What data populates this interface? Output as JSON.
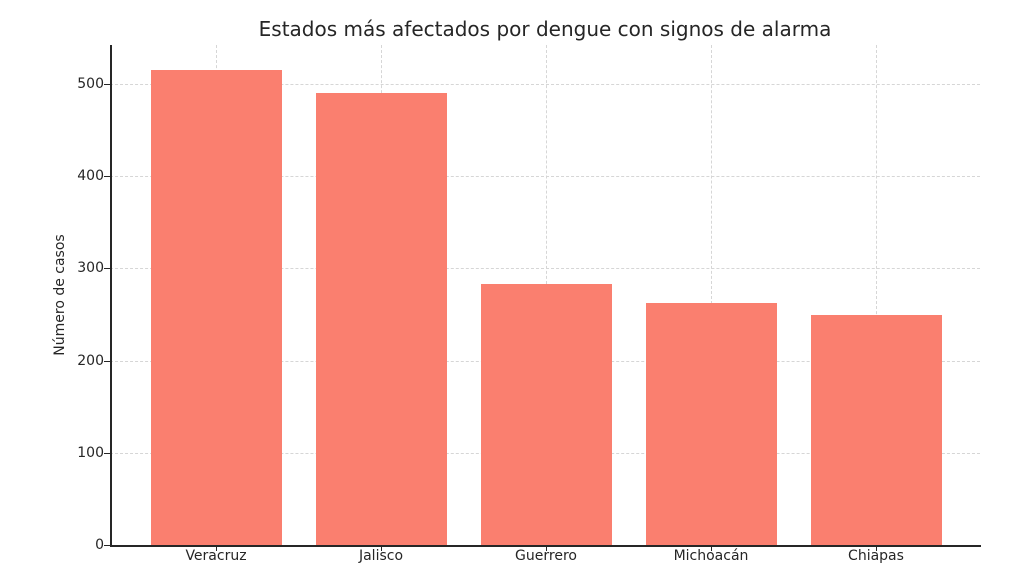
{
  "chart_data": {
    "type": "bar",
    "title": "Estados más afectados por dengue con signos de alarma",
    "xlabel": "",
    "ylabel": "Número de casos",
    "categories": [
      "Veracruz",
      "Jalisco",
      "Guerrero",
      "Michoacán",
      "Chiapas"
    ],
    "values": [
      515,
      490,
      283,
      263,
      250
    ],
    "ylim": [
      0,
      542
    ],
    "yticks": [
      "0",
      "100",
      "200",
      "300",
      "400",
      "500"
    ],
    "grid": true,
    "bar_color": "#fa7f6f"
  }
}
